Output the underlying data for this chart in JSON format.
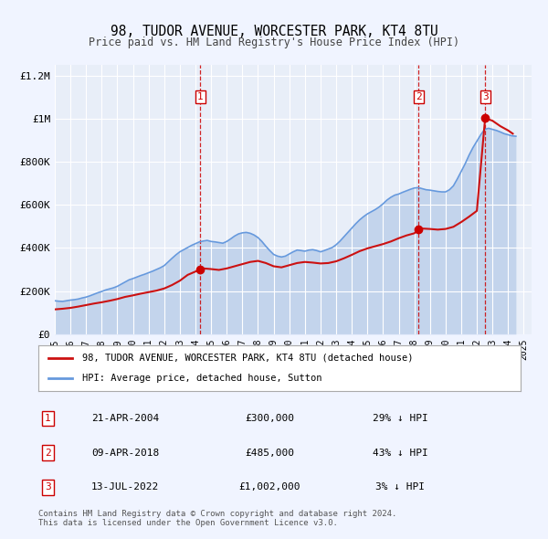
{
  "title": "98, TUDOR AVENUE, WORCESTER PARK, KT4 8TU",
  "subtitle": "Price paid vs. HM Land Registry's House Price Index (HPI)",
  "bg_color": "#f0f4ff",
  "plot_bg_color": "#e8eef8",
  "grid_color": "#ffffff",
  "red_line_label": "98, TUDOR AVENUE, WORCESTER PARK, KT4 8TU (detached house)",
  "blue_line_label": "HPI: Average price, detached house, Sutton",
  "footer": "Contains HM Land Registry data © Crown copyright and database right 2024.\nThis data is licensed under the Open Government Licence v3.0.",
  "transactions": [
    {
      "num": 1,
      "date": "21-APR-2004",
      "price": 300000,
      "hpi_pct": "29%",
      "year_float": 2004.3
    },
    {
      "num": 2,
      "date": "09-APR-2018",
      "price": 485000,
      "hpi_pct": "43%",
      "year_float": 2018.27
    },
    {
      "num": 3,
      "date": "13-JUL-2022",
      "price": 1002000,
      "hpi_pct": "3%",
      "year_float": 2022.53
    }
  ],
  "vline_color": "#cc0000",
  "vline_style": "--",
  "marker_color": "#cc0000",
  "ylim": [
    0,
    1250000
  ],
  "xlim_start": 1995.0,
  "xlim_end": 2025.5,
  "yticks": [
    0,
    200000,
    400000,
    600000,
    800000,
    1000000,
    1200000
  ],
  "ytick_labels": [
    "£0",
    "£200K",
    "£400K",
    "£600K",
    "£800K",
    "£1M",
    "£1.2M"
  ],
  "xticks": [
    1995,
    1996,
    1997,
    1998,
    1999,
    2000,
    2001,
    2002,
    2003,
    2004,
    2005,
    2006,
    2007,
    2008,
    2009,
    2010,
    2011,
    2012,
    2013,
    2014,
    2015,
    2016,
    2017,
    2018,
    2019,
    2020,
    2021,
    2022,
    2023,
    2024,
    2025
  ],
  "hpi_data": {
    "years": [
      1995.0,
      1995.25,
      1995.5,
      1995.75,
      1996.0,
      1996.25,
      1996.5,
      1996.75,
      1997.0,
      1997.25,
      1997.5,
      1997.75,
      1998.0,
      1998.25,
      1998.5,
      1998.75,
      1999.0,
      1999.25,
      1999.5,
      1999.75,
      2000.0,
      2000.25,
      2000.5,
      2000.75,
      2001.0,
      2001.25,
      2001.5,
      2001.75,
      2002.0,
      2002.25,
      2002.5,
      2002.75,
      2003.0,
      2003.25,
      2003.5,
      2003.75,
      2004.0,
      2004.25,
      2004.5,
      2004.75,
      2005.0,
      2005.25,
      2005.5,
      2005.75,
      2006.0,
      2006.25,
      2006.5,
      2006.75,
      2007.0,
      2007.25,
      2007.5,
      2007.75,
      2008.0,
      2008.25,
      2008.5,
      2008.75,
      2009.0,
      2009.25,
      2009.5,
      2009.75,
      2010.0,
      2010.25,
      2010.5,
      2010.75,
      2011.0,
      2011.25,
      2011.5,
      2011.75,
      2012.0,
      2012.25,
      2012.5,
      2012.75,
      2013.0,
      2013.25,
      2013.5,
      2013.75,
      2014.0,
      2014.25,
      2014.5,
      2014.75,
      2015.0,
      2015.25,
      2015.5,
      2015.75,
      2016.0,
      2016.25,
      2016.5,
      2016.75,
      2017.0,
      2017.25,
      2017.5,
      2017.75,
      2018.0,
      2018.25,
      2018.5,
      2018.75,
      2019.0,
      2019.25,
      2019.5,
      2019.75,
      2020.0,
      2020.25,
      2020.5,
      2020.75,
      2021.0,
      2021.25,
      2021.5,
      2021.75,
      2022.0,
      2022.25,
      2022.5,
      2022.75,
      2023.0,
      2023.25,
      2023.5,
      2023.75,
      2024.0,
      2024.25,
      2024.5
    ],
    "values": [
      155000,
      153000,
      152000,
      155000,
      158000,
      160000,
      163000,
      168000,
      172000,
      178000,
      185000,
      192000,
      198000,
      205000,
      210000,
      215000,
      222000,
      232000,
      242000,
      252000,
      258000,
      265000,
      272000,
      278000,
      285000,
      292000,
      300000,
      308000,
      318000,
      335000,
      352000,
      368000,
      382000,
      392000,
      402000,
      412000,
      420000,
      428000,
      432000,
      435000,
      430000,
      428000,
      425000,
      422000,
      430000,
      442000,
      455000,
      465000,
      470000,
      472000,
      468000,
      460000,
      448000,
      430000,
      408000,
      388000,
      370000,
      362000,
      358000,
      362000,
      372000,
      382000,
      390000,
      388000,
      385000,
      390000,
      392000,
      388000,
      382000,
      388000,
      395000,
      402000,
      415000,
      432000,
      452000,
      472000,
      492000,
      512000,
      530000,
      545000,
      558000,
      568000,
      578000,
      590000,
      605000,
      622000,
      635000,
      645000,
      650000,
      658000,
      665000,
      672000,
      678000,
      680000,
      675000,
      670000,
      668000,
      665000,
      662000,
      660000,
      660000,
      670000,
      688000,
      720000,
      755000,
      790000,
      830000,
      865000,
      895000,
      925000,
      950000,
      955000,
      950000,
      945000,
      938000,
      930000,
      925000,
      920000,
      918000
    ]
  },
  "price_data": {
    "years": [
      1995.0,
      1995.5,
      1996.0,
      1996.5,
      1997.0,
      1997.5,
      1998.0,
      1998.5,
      1999.0,
      1999.5,
      2000.0,
      2000.5,
      2001.0,
      2001.5,
      2002.0,
      2002.5,
      2003.0,
      2003.5,
      2004.3,
      2004.5,
      2005.0,
      2005.5,
      2006.0,
      2006.5,
      2007.0,
      2007.5,
      2008.0,
      2008.5,
      2009.0,
      2009.5,
      2010.0,
      2010.5,
      2011.0,
      2011.5,
      2012.0,
      2012.5,
      2013.0,
      2013.5,
      2014.0,
      2014.5,
      2015.0,
      2015.5,
      2016.0,
      2016.5,
      2017.0,
      2017.5,
      2018.0,
      2018.27,
      2018.5,
      2019.0,
      2019.5,
      2020.0,
      2020.5,
      2021.0,
      2021.5,
      2022.0,
      2022.53,
      2023.0,
      2023.5,
      2024.0,
      2024.3
    ],
    "values": [
      115000,
      118000,
      122000,
      128000,
      135000,
      142000,
      148000,
      155000,
      163000,
      173000,
      180000,
      188000,
      195000,
      202000,
      212000,
      228000,
      248000,
      275000,
      300000,
      305000,
      302000,
      298000,
      305000,
      315000,
      325000,
      335000,
      340000,
      330000,
      315000,
      310000,
      320000,
      330000,
      335000,
      332000,
      328000,
      330000,
      338000,
      352000,
      368000,
      385000,
      398000,
      408000,
      418000,
      430000,
      445000,
      458000,
      468000,
      485000,
      490000,
      488000,
      485000,
      488000,
      498000,
      520000,
      545000,
      572000,
      1002000,
      990000,
      965000,
      945000,
      930000
    ]
  }
}
